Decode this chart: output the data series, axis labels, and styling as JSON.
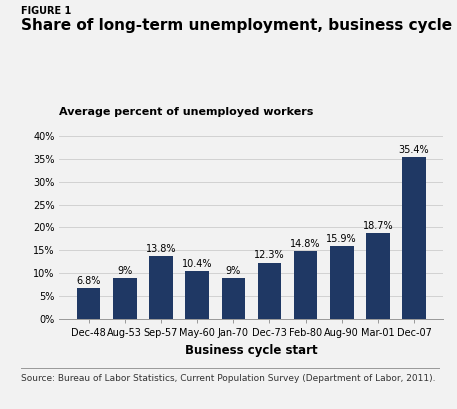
{
  "figure_label": "FIGURE 1",
  "title": "Share of long-term unemployment, business cycle averages",
  "ylabel": "Average percent of unemployed workers",
  "xlabel": "Business cycle start",
  "categories": [
    "Dec-48",
    "Aug-53",
    "Sep-57",
    "May-60",
    "Jan-70",
    "Dec-73",
    "Feb-80",
    "Aug-90",
    "Mar-01",
    "Dec-07"
  ],
  "values": [
    6.8,
    9.0,
    13.8,
    10.4,
    9.0,
    12.3,
    14.8,
    15.9,
    18.7,
    35.4
  ],
  "labels": [
    "6.8%",
    "9%",
    "13.8%",
    "10.4%",
    "9%",
    "12.3%",
    "14.8%",
    "15.9%",
    "18.7%",
    "35.4%"
  ],
  "bar_color": "#1f3864",
  "background_color": "#f2f2f2",
  "yticks": [
    0,
    5,
    10,
    15,
    20,
    25,
    30,
    35,
    40
  ],
  "ytick_labels": [
    "0%",
    "5%",
    "10%",
    "15%",
    "20%",
    "25%",
    "30%",
    "35%",
    "40%"
  ],
  "ylim": [
    0,
    42
  ],
  "source_text": "Source: Bureau of Labor Statistics, Current Population Survey (Department of Labor, 2011).",
  "figure_label_fontsize": 7,
  "title_fontsize": 11,
  "ylabel_fontsize": 8,
  "xlabel_fontsize": 8.5,
  "tick_fontsize": 7,
  "bar_label_fontsize": 7,
  "source_fontsize": 6.5
}
